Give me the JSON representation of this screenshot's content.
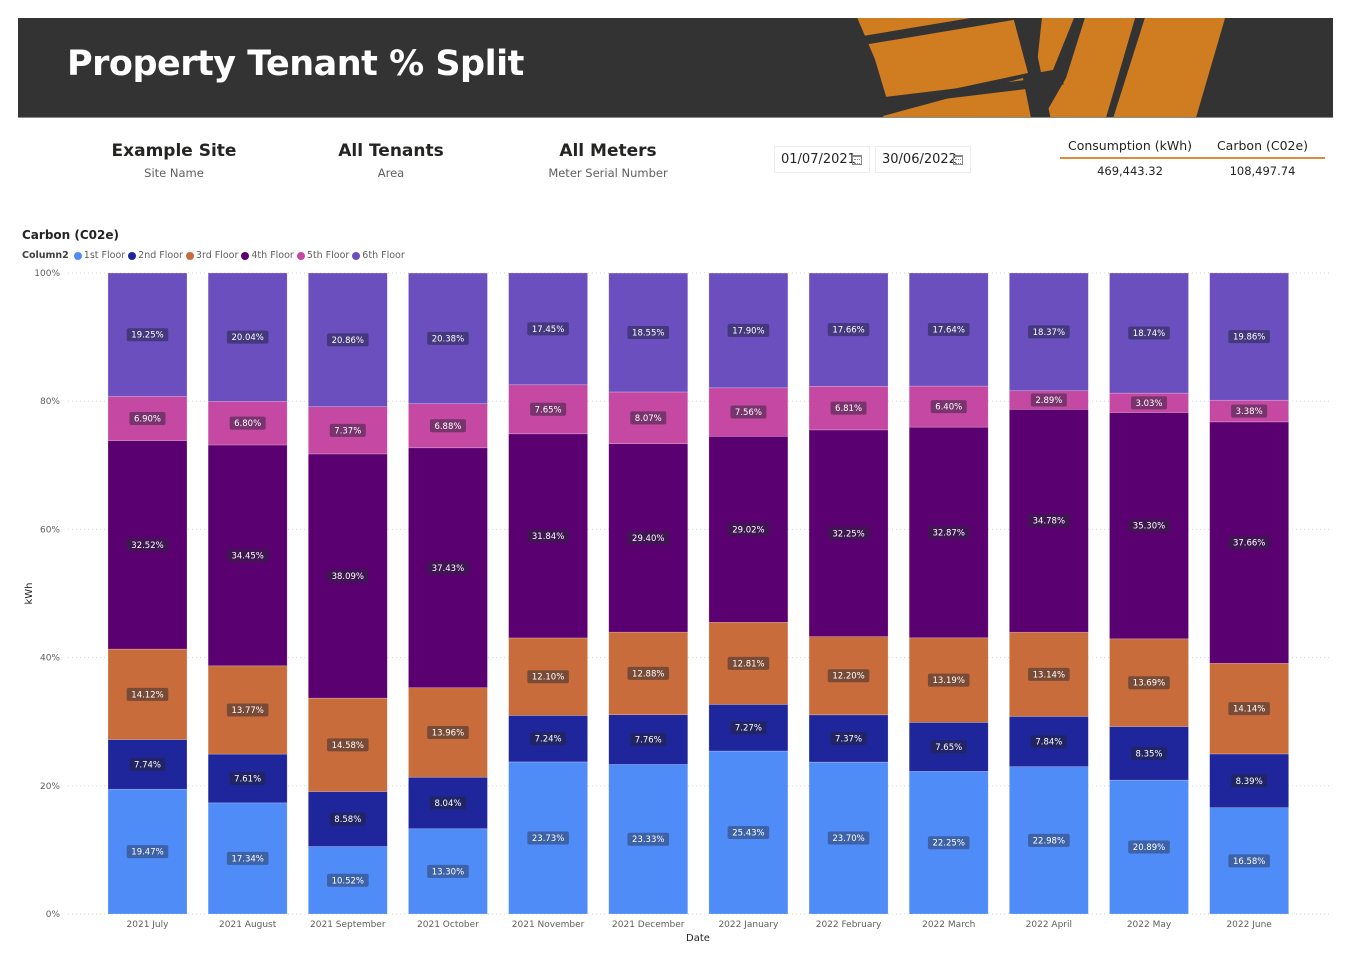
{
  "header": {
    "title": "Property Tenant % Split",
    "brand_color": "#d07c20",
    "background": "#333333"
  },
  "slicers": [
    {
      "value": "Example Site",
      "label": "Site Name"
    },
    {
      "value": "All Tenants",
      "label": "Area"
    },
    {
      "value": "All Meters",
      "label": "Meter Serial Number"
    }
  ],
  "date_range": {
    "start": "01/07/2021",
    "end": "30/06/2022",
    "icon": "calendar-icon"
  },
  "kpi": {
    "headers": [
      "Consumption (kWh)",
      "Carbon (C02e)"
    ],
    "values": [
      "469,443.32",
      "108,497.74"
    ],
    "accent": "#e08a3c"
  },
  "chart_data": {
    "type": "bar",
    "stacked": "100%",
    "title": "Carbon (C02e)",
    "legend_title": "Column2",
    "legend_position": "top-left",
    "xlabel": "Date",
    "ylabel": "kWh",
    "ylim": [
      0,
      100
    ],
    "yticks": [
      "0%",
      "20%",
      "40%",
      "60%",
      "80%",
      "100%"
    ],
    "grid": true,
    "categories": [
      "2021 July",
      "2021 August",
      "2021 September",
      "2021 October",
      "2021 November",
      "2021 December",
      "2022 January",
      "2022 February",
      "2022 March",
      "2022 April",
      "2022 May",
      "2022 June"
    ],
    "series": [
      {
        "name": "1st Floor",
        "color": "#4f8cf7",
        "label_bg": "#3a5a9a",
        "values": [
          19.47,
          17.34,
          10.52,
          13.3,
          23.73,
          23.33,
          25.43,
          23.7,
          22.25,
          22.98,
          20.89,
          16.58
        ]
      },
      {
        "name": "2nd Floor",
        "color": "#1f259a",
        "label_bg": "#23265c",
        "values": [
          7.74,
          7.61,
          8.58,
          8.04,
          7.24,
          7.76,
          7.27,
          7.37,
          7.65,
          7.84,
          8.35,
          8.39
        ]
      },
      {
        "name": "3rd Floor",
        "color": "#c96c3c",
        "label_bg": "#6b4535",
        "values": [
          14.12,
          13.77,
          14.58,
          13.96,
          12.1,
          12.88,
          12.81,
          12.2,
          13.19,
          13.14,
          13.69,
          14.14
        ]
      },
      {
        "name": "4th Floor",
        "color": "#5b0070",
        "label_bg": "#3c1a4c",
        "values": [
          32.52,
          34.45,
          38.09,
          37.43,
          31.84,
          29.4,
          29.02,
          32.25,
          32.87,
          34.78,
          35.3,
          37.66
        ]
      },
      {
        "name": "5th Floor",
        "color": "#c548a2",
        "label_bg": "#6b3064",
        "values": [
          6.9,
          6.8,
          7.37,
          6.88,
          7.65,
          8.07,
          7.56,
          6.81,
          6.4,
          2.89,
          3.03,
          3.38
        ]
      },
      {
        "name": "6th Floor",
        "color": "#6c4fbf",
        "label_bg": "#3e3473",
        "values": [
          19.25,
          20.04,
          20.86,
          20.38,
          17.45,
          18.55,
          17.9,
          17.66,
          17.64,
          18.37,
          18.74,
          19.86
        ]
      }
    ]
  }
}
